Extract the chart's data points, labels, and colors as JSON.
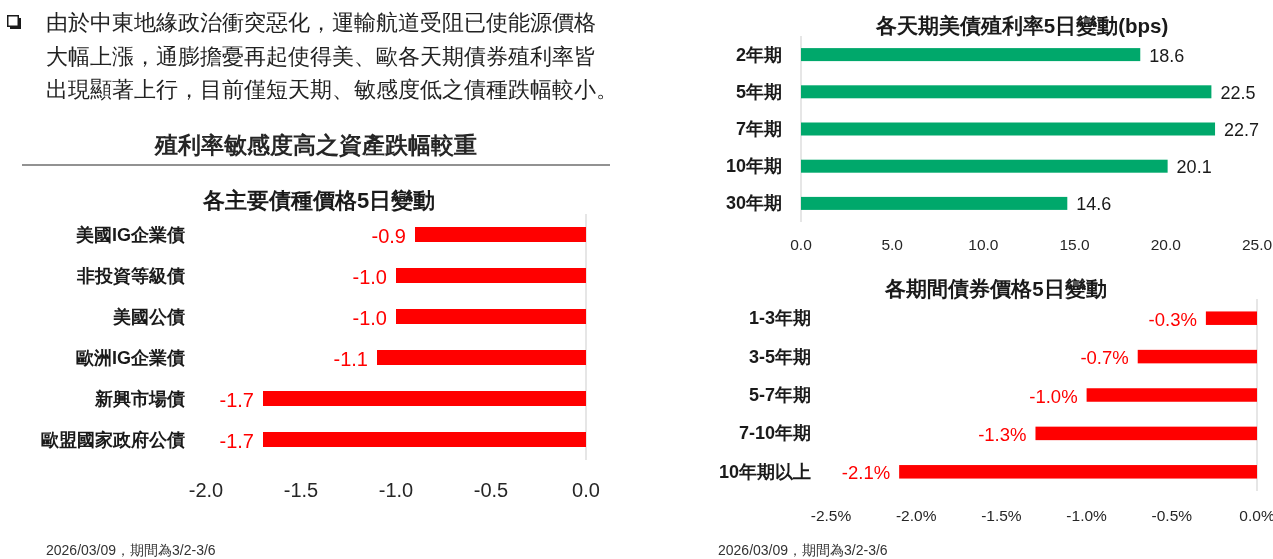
{
  "chart_data": [
    {
      "type": "other",
      "title": "殖利率敏感度高之資產跌幅較重",
      "annotations": [
        "由於中東地緣政治衝突惡化，運輸航道受阻已使能源價格大幅上漲，通膨擔憂再起使得美、歐各天期債券殖利率皆出現顯著上行，目前僅短天期、敏感度低之債種跌幅較小。"
      ]
    },
    {
      "type": "bar",
      "orientation": "horizontal",
      "title": "各主要債種價格5日變動",
      "categories": [
        "美國IG企業債",
        "非投資等級債",
        "美國公債",
        "歐洲IG企業債",
        "新興市場債",
        "歐盟國家政府公債"
      ],
      "values": [
        -0.9,
        -1.0,
        -1.0,
        -1.1,
        -1.7,
        -1.7
      ],
      "value_labels": [
        "-0.9",
        "-1.0",
        "-1.0",
        "-1.1",
        "-1.7",
        "-1.7"
      ],
      "color": "#ff0000",
      "xlim": [
        -2,
        0
      ],
      "xticks": [
        {
          "value": -2,
          "label": "-2.0"
        },
        {
          "value": -1.5,
          "label": "-1.5"
        },
        {
          "value": -1,
          "label": "-1.0"
        },
        {
          "value": -0.5,
          "label": "-0.5"
        },
        {
          "value": 0,
          "label": "0.0"
        }
      ],
      "annotations": [
        "2026/03/09，期間為3/2-3/6"
      ]
    },
    {
      "type": "bar",
      "orientation": "horizontal",
      "title": "各天期美債殖利率5日變動(bps)",
      "categories": [
        "2年期",
        "5年期",
        "7年期",
        "10年期",
        "30年期"
      ],
      "values": [
        18.6,
        22.5,
        22.7,
        20.1,
        14.6
      ],
      "value_labels": [
        "18.6",
        "22.5",
        "22.7",
        "20.1",
        "14.6"
      ],
      "color": "#00a86b",
      "xlim": [
        0,
        25
      ],
      "xticks": [
        {
          "value": 0,
          "label": "0.0"
        },
        {
          "value": 5,
          "label": "5.0"
        },
        {
          "value": 10,
          "label": "10.0"
        },
        {
          "value": 15,
          "label": "15.0"
        },
        {
          "value": 20,
          "label": "20.0"
        },
        {
          "value": 25,
          "label": "25.0"
        }
      ]
    },
    {
      "type": "bar",
      "orientation": "horizontal",
      "title": "各期間債券價格5日變動",
      "categories": [
        "1-3年期",
        "3-5年期",
        "5-7年期",
        "7-10年期",
        "10年期以上"
      ],
      "values": [
        -0.3,
        -0.7,
        -1.0,
        -1.3,
        -2.1
      ],
      "value_labels": [
        "-0.3%",
        "-0.7%",
        "-1.0%",
        "-1.3%",
        "-2.1%"
      ],
      "color": "#ff0000",
      "xlim": [
        -2.5,
        0
      ],
      "xticks": [
        {
          "value": -2.5,
          "label": "-2.5%"
        },
        {
          "value": -2,
          "label": "-2.0%"
        },
        {
          "value": -1.5,
          "label": "-1.5%"
        },
        {
          "value": -1,
          "label": "-1.0%"
        },
        {
          "value": -0.5,
          "label": "-0.5%"
        },
        {
          "value": 0,
          "label": "0.0%"
        }
      ],
      "annotations": [
        "2026/03/09，期間為3/2-3/6"
      ]
    }
  ]
}
